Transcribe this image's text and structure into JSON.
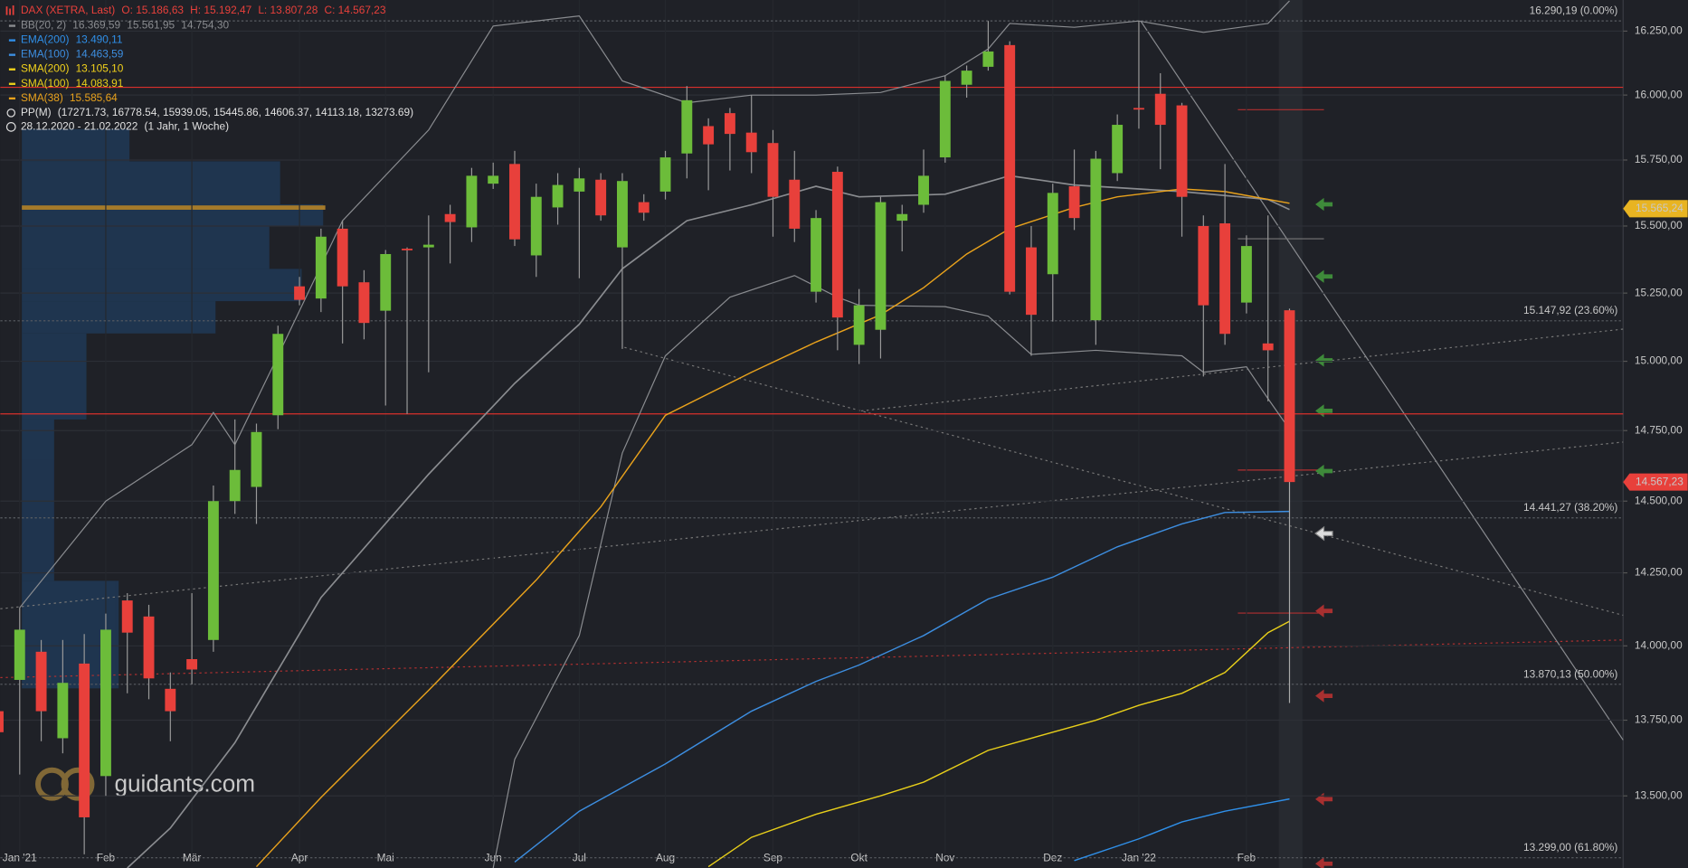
{
  "chart_data": {
    "type": "candlestick",
    "header": {
      "instrument": "DAX (XETRA, Last)",
      "ohlc_labels": [
        "O: 15.186,63",
        "H: 15.192,47",
        "L: 13.807,28",
        "C: 14.567,23"
      ],
      "pivot_name": "PP(M)",
      "pivot_text": "(17271.73, 16778.54, 15939.05, 15445.86, 14606.37, 14113.18, 13273.69)",
      "date_range": "28.12.2020 - 21.02.2022",
      "period": "(1 Jahr, 1 Woche)"
    },
    "watermark": "guidants.com",
    "log_scale": true,
    "grid": true,
    "ylim": [
      13266,
      16373
    ],
    "yticks": [
      {
        "value": 13500,
        "label": "13.500,00"
      },
      {
        "value": 13750,
        "label": "13.750,00"
      },
      {
        "value": 14000,
        "label": "14.000,00"
      },
      {
        "value": 14250,
        "label": "14.250,00"
      },
      {
        "value": 14500,
        "label": "14.500,00"
      },
      {
        "value": 14750,
        "label": "14.750,00"
      },
      {
        "value": 15000,
        "label": "15.000,00"
      },
      {
        "value": 15250,
        "label": "15.250,00"
      },
      {
        "value": 15500,
        "label": "15.500,00"
      },
      {
        "value": 15750,
        "label": "15.750,00"
      },
      {
        "value": 16000,
        "label": "16.000,00"
      },
      {
        "value": 16250,
        "label": "16.250,00"
      }
    ],
    "xticks": [
      {
        "value": 1,
        "label": "Jan '21"
      },
      {
        "value": 5,
        "label": "Feb"
      },
      {
        "value": 9,
        "label": "Mär"
      },
      {
        "value": 14,
        "label": "Apr"
      },
      {
        "value": 18,
        "label": "Mai"
      },
      {
        "value": 23,
        "label": "Jun"
      },
      {
        "value": 27,
        "label": "Jul"
      },
      {
        "value": 31,
        "label": "Aug"
      },
      {
        "value": 36,
        "label": "Sep"
      },
      {
        "value": 40,
        "label": "Okt"
      },
      {
        "value": 44,
        "label": "Nov"
      },
      {
        "value": 49,
        "label": "Dez"
      },
      {
        "value": 53,
        "label": "Jan '22"
      },
      {
        "value": 58,
        "label": "Feb"
      }
    ],
    "categories": [
      null,
      null,
      null,
      null,
      null,
      null,
      null,
      null,
      null,
      null,
      null,
      null,
      null,
      null,
      null,
      null,
      null,
      null,
      null,
      null,
      null,
      null,
      null,
      null,
      null,
      null,
      null,
      null,
      null,
      null,
      null,
      null,
      null,
      null,
      null,
      null,
      null,
      null,
      null,
      null,
      null,
      null,
      null,
      null,
      null,
      null,
      null,
      null,
      null,
      null,
      null,
      null,
      null,
      null,
      null,
      null,
      null,
      null,
      null,
      null,
      null
    ],
    "up_color": "#6cbc3a",
    "down_color": "#e8403b",
    "open": [
      13780,
      13885,
      13980,
      13690,
      13940,
      13565,
      14155,
      14100,
      13855,
      13955,
      14020,
      14500,
      14550,
      14805,
      15275,
      15230,
      15490,
      15290,
      15185,
      15415,
      15420,
      15545,
      15495,
      15660,
      15735,
      15390,
      15570,
      15630,
      15675,
      15420,
      15590,
      15630,
      15775,
      15880,
      15930,
      15855,
      15815,
      15675,
      15255,
      15705,
      15060,
      15115,
      15520,
      15580,
      15760,
      16040,
      16110,
      16195,
      15420,
      15320,
      15650,
      15150,
      15700,
      15950,
      16005,
      15960,
      15500,
      15510,
      15215,
      15065,
      15186.63
    ],
    "high": [
      13810,
      14130,
      14020,
      14020,
      14040,
      14110,
      14180,
      14140,
      13910,
      14180,
      14555,
      14790,
      14775,
      15130,
      15310,
      15490,
      15520,
      15335,
      15410,
      15420,
      15540,
      15580,
      15720,
      15740,
      15785,
      15660,
      15700,
      15720,
      15700,
      15700,
      15620,
      15785,
      16035,
      15910,
      15950,
      16000,
      15865,
      15785,
      15560,
      15725,
      15265,
      15610,
      15580,
      15790,
      16075,
      16115,
      16290,
      16210,
      15500,
      15660,
      15790,
      15785,
      15925,
      16290,
      16085,
      15970,
      15540,
      15735,
      15465,
      15540,
      15192.47
    ],
    "low": [
      13680,
      13570,
      13680,
      13640,
      13310,
      13500,
      13840,
      13820,
      13680,
      13870,
      13980,
      14455,
      14420,
      14755,
      15205,
      15180,
      15065,
      15080,
      14840,
      14810,
      14960,
      15360,
      15440,
      15640,
      15425,
      15310,
      15505,
      15305,
      15520,
      15045,
      15520,
      15600,
      15680,
      15635,
      15710,
      15700,
      15460,
      15440,
      15215,
      15040,
      14990,
      15010,
      15405,
      15550,
      15740,
      15990,
      16095,
      15245,
      15020,
      15145,
      15485,
      15060,
      15670,
      15870,
      15715,
      15460,
      14945,
      15060,
      15175,
      14855,
      13807.28
    ],
    "close": [
      13710,
      14055,
      13780,
      13875,
      13430,
      14055,
      14045,
      13890,
      13780,
      13920,
      14500,
      14610,
      14745,
      15100,
      15225,
      15460,
      15275,
      15140,
      15395,
      15410,
      15430,
      15515,
      15690,
      15690,
      15450,
      15610,
      15655,
      15680,
      15540,
      15670,
      15550,
      15760,
      15980,
      15810,
      15850,
      15780,
      15610,
      15490,
      15530,
      15160,
      15205,
      15590,
      15545,
      15690,
      16055,
      16095,
      16170,
      15255,
      15170,
      15625,
      15530,
      15755,
      15885,
      15945,
      15885,
      15610,
      15205,
      15100,
      15425,
      15040,
      14567.23
    ],
    "bollinger": {
      "name": "BB(20, 2)",
      "color": "#8a8c90",
      "last_labels": [
        "16.369,59",
        "15.561,95",
        "14.754,30"
      ],
      "upper": {
        "x": [
          1,
          5,
          9,
          10,
          11,
          13,
          16,
          20,
          23,
          27,
          29,
          32,
          35,
          38,
          41,
          44,
          46,
          47,
          50,
          53,
          56,
          59,
          60
        ],
        "values": [
          14130,
          14500,
          14700,
          14815,
          14700,
          15020,
          15520,
          15865,
          16270,
          16310,
          16055,
          15970,
          16000,
          16000,
          16010,
          16075,
          16180,
          16280,
          16265,
          16290,
          16245,
          16280,
          16369.59
        ]
      },
      "middle": {
        "x": [
          6,
          8,
          11,
          15,
          20,
          24,
          27,
          29,
          32,
          35,
          38,
          40,
          44,
          47,
          50,
          53,
          55,
          59,
          60
        ],
        "values": [
          13266,
          13395,
          13675,
          14165,
          14595,
          14920,
          15135,
          15340,
          15520,
          15580,
          15650,
          15610,
          15620,
          15690,
          15655,
          15640,
          15630,
          15600,
          15561.95
        ]
      },
      "lower": {
        "x": [
          23,
          24,
          27,
          29,
          31,
          34,
          37,
          39,
          40,
          44,
          46,
          48,
          51,
          55,
          56,
          58,
          59,
          60
        ],
        "values": [
          13266,
          13620,
          14035,
          14670,
          15020,
          15235,
          15315,
          15235,
          15205,
          15200,
          15165,
          15025,
          15040,
          15020,
          14960,
          14980,
          14865,
          14754.3
        ]
      }
    },
    "series": [
      {
        "name": "EMA(200)",
        "color": "#2f8fe8",
        "last_label": "13.490,11",
        "x": [
          50,
          53,
          55,
          57,
          60
        ],
        "values": [
          13290,
          13360,
          13415,
          13450,
          13490.11
        ]
      },
      {
        "name": "EMA(100)",
        "color": "#3d8ee0",
        "last_label": "14.463,59",
        "x": [
          24,
          27,
          31,
          35,
          38,
          40,
          43,
          46,
          49,
          52,
          55,
          57,
          60
        ],
        "values": [
          13285,
          13450,
          13605,
          13780,
          13880,
          13935,
          14035,
          14160,
          14235,
          14340,
          14420,
          14460,
          14463.59
        ]
      },
      {
        "name": "SMA(200)",
        "color": "#f2d21b",
        "last_label": "13.105,10",
        "x": [],
        "values": []
      },
      {
        "name": "SMA(100)",
        "color": "#e8cf1a",
        "last_label": "14.083,91",
        "x": [
          33,
          35,
          38,
          41,
          43,
          46,
          49,
          51,
          53,
          55,
          57,
          59,
          60
        ],
        "values": [
          13270,
          13365,
          13440,
          13500,
          13545,
          13650,
          13710,
          13750,
          13800,
          13840,
          13910,
          14045,
          14083.91
        ]
      },
      {
        "name": "SMA(38)",
        "color": "#e9a21c",
        "last_label": "15.585,64",
        "x": [
          12,
          15,
          20,
          25,
          28,
          31,
          35,
          38,
          41,
          43,
          45,
          47,
          50,
          52,
          55,
          57,
          60
        ],
        "values": [
          13270,
          13495,
          13850,
          14225,
          14480,
          14805,
          14960,
          15070,
          15170,
          15270,
          15395,
          15490,
          15570,
          15610,
          15640,
          15630,
          15585.64
        ]
      }
    ],
    "hlines": [
      16030,
      14810
    ],
    "hline_color": "#d9302c",
    "fib_levels": [
      {
        "value": 16290.19,
        "label": "16.290,19 (0.00%)"
      },
      {
        "value": 15147.92,
        "label": "15.147,92 (23.60%)"
      },
      {
        "value": 14441.27,
        "label": "14.441,27 (38.20%)"
      },
      {
        "value": 13870.13,
        "label": "13.870,13 (50.00%)"
      },
      {
        "value": 13299.0,
        "label": "13.299,00 (61.80%)"
      }
    ],
    "price_tags": [
      {
        "value": 15565.24,
        "label": "15.565,24",
        "color": "#e8b422"
      },
      {
        "value": 14567.23,
        "label": "14.567,23",
        "color": "#e8403b"
      }
    ]
  }
}
